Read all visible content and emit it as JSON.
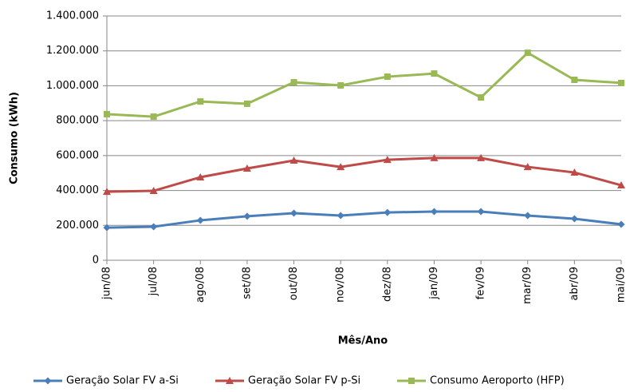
{
  "chart_data": {
    "type": "line",
    "x_label": "Mês/Ano",
    "y_label": "Consumo (kWh)",
    "categories": [
      "jun/08",
      "jul/08",
      "ago/08",
      "set/08",
      "out/08",
      "nov/08",
      "dez/08",
      "jan/09",
      "fev/09",
      "mar/09",
      "abr/09",
      "mai/09"
    ],
    "series": [
      {
        "name": "Geração Solar FV a-Si",
        "color": "#4a7ebb",
        "marker": "diamond",
        "values": [
          187000,
          192000,
          229000,
          252000,
          270000,
          256000,
          274000,
          279000,
          279000,
          256000,
          238000,
          206000
        ]
      },
      {
        "name": "Geração Solar FV p-Si",
        "color": "#be4b48",
        "marker": "triangle",
        "values": [
          393000,
          398000,
          476000,
          526000,
          572000,
          535000,
          576000,
          586000,
          586000,
          535000,
          503000,
          430000
        ]
      },
      {
        "name": "Consumo Aeroporto (HFP)",
        "color": "#98b954",
        "marker": "square",
        "values": [
          837000,
          823000,
          910000,
          897000,
          1020000,
          1002000,
          1052000,
          1070000,
          933000,
          1189000,
          1034000,
          1016000
        ]
      }
    ],
    "ylim": [
      0,
      1400000
    ],
    "yticks": [
      0,
      {
        "value": 200000,
        "label": "200.000"
      },
      {
        "value": 400000,
        "label": "400.000"
      },
      {
        "value": 600000,
        "label": "600.000"
      },
      {
        "value": 800000,
        "label": "800.000"
      },
      {
        "value": 1000000,
        "label": "1.000.000"
      },
      {
        "value": 1200000,
        "label": "1.200.000"
      },
      {
        "value": 1400000,
        "label": "1.400.000"
      }
    ],
    "grid": true
  }
}
